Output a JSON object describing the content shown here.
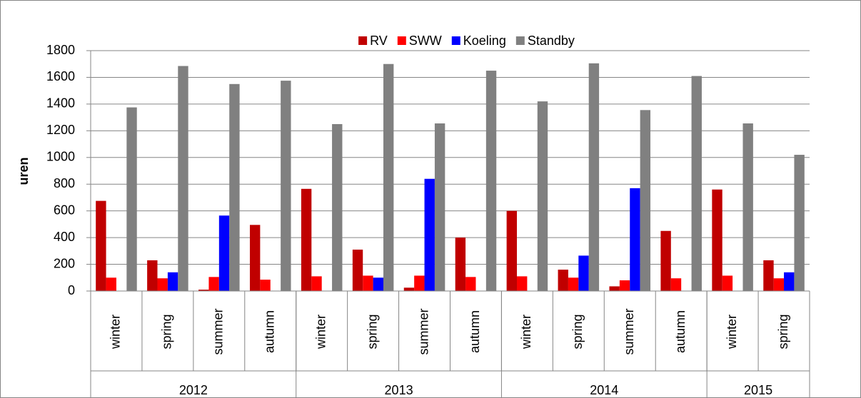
{
  "chart_data": {
    "type": "bar",
    "y_label": "uren",
    "groups": [
      {
        "name": "2012",
        "categories": [
          "winter",
          "spring",
          "summer",
          "autumn"
        ]
      },
      {
        "name": "2013",
        "categories": [
          "winter",
          "spring",
          "summer",
          "autumn"
        ]
      },
      {
        "name": "2014",
        "categories": [
          "winter",
          "spring",
          "summer",
          "autumn"
        ]
      },
      {
        "name": "2015",
        "categories": [
          "winter",
          "spring"
        ]
      }
    ],
    "series": [
      {
        "name": "RV",
        "color": "#c00000",
        "values": [
          675,
          230,
          10,
          495,
          765,
          310,
          25,
          400,
          600,
          160,
          35,
          450,
          760,
          230
        ]
      },
      {
        "name": "SWW",
        "color": "#ff0000",
        "values": [
          100,
          95,
          105,
          85,
          110,
          115,
          115,
          105,
          110,
          100,
          80,
          95,
          115,
          95
        ]
      },
      {
        "name": "Koeling",
        "color": "#0000ff",
        "values": [
          0,
          140,
          565,
          0,
          0,
          100,
          840,
          0,
          0,
          265,
          770,
          0,
          0,
          140
        ]
      },
      {
        "name": "Standby",
        "color": "#808080",
        "values": [
          1375,
          1685,
          1550,
          1575,
          1250,
          1700,
          1255,
          1650,
          1420,
          1705,
          1355,
          1610,
          1255,
          1020
        ]
      }
    ],
    "ylim": [
      0,
      1800
    ],
    "yticks": [
      0,
      200,
      400,
      600,
      800,
      1000,
      1200,
      1400,
      1600,
      1800
    ],
    "grid": true,
    "legend": "top"
  }
}
